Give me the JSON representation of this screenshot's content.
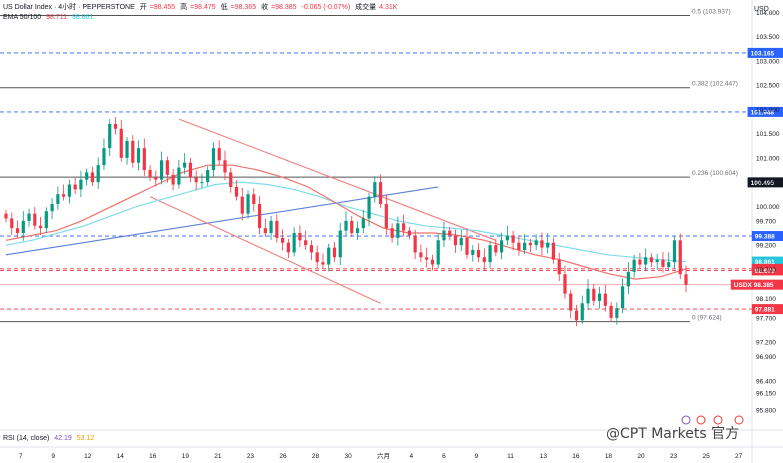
{
  "legend": {
    "symbol": "US Dollar Index · 4小时 · PEPPERSTONE",
    "open_label": "开",
    "open": "=98.455",
    "high_label": "高",
    "high": "=98.475",
    "low_label": "低",
    "low": "=98.365",
    "close_label": "收",
    "close": "=98.385",
    "change": "-0.065 (-0.07%)",
    "volume_label": "成交量",
    "volume": "4.31K",
    "ema_label": "EMA 50/100",
    "ema50": "98.711",
    "ema100": "98.861"
  },
  "rsi_legend": {
    "label": "RSI (14, close)",
    "value_a": "42.19",
    "value_b": "53.12"
  },
  "currency": "USD",
  "watermark": "@CPT Markets 官方",
  "colors": {
    "up": "#089981",
    "down": "#f23645",
    "ema50": "#f0706c",
    "ema100": "#7fdcea",
    "trend_up": "#5b7fd8",
    "channel": "#f08080",
    "hline_dash": "#2962ff",
    "fib": "#555555"
  },
  "chart_data": {
    "type": "candlestick",
    "title": "US Dollar Index · 4小时 · PEPPERSTONE",
    "ylim": [
      95.8,
      104.05
    ],
    "y_ticks": [
      "104.000",
      "103.500",
      "103.000",
      "102.500",
      "102.000",
      "101.500",
      "101.000",
      "100.500",
      "100.000",
      "99.700",
      "99.200",
      "98.700",
      "98.100",
      "97.700",
      "97.200",
      "96.900",
      "96.400",
      "96.150",
      "95.800"
    ],
    "x_ticks": [
      "7",
      "9",
      "12",
      "14",
      "16",
      "19",
      "21",
      "23",
      "26",
      "28",
      "30",
      "六月",
      "4",
      "6",
      "9",
      "11",
      "13",
      "16",
      "18",
      "20",
      "23",
      "25",
      "27"
    ],
    "fib_levels": [
      {
        "label": "0.5 (103.937)",
        "value": 103.937
      },
      {
        "label": "0.382 (102.447)",
        "value": 102.447
      },
      {
        "label": "0.236 (100.604)",
        "value": 100.604
      },
      {
        "label": "0 (97.624)",
        "value": 97.624
      }
    ],
    "price_tags": [
      {
        "label": "103.165",
        "value": 103.165,
        "style": "blue"
      },
      {
        "label": "101.948",
        "value": 101.948,
        "style": "blue"
      },
      {
        "label": "100.495",
        "value": 100.495,
        "style": "dark"
      },
      {
        "label": "99.388",
        "value": 99.388,
        "style": "blue"
      },
      {
        "label": "98.861",
        "value": 98.861,
        "style": "cyan"
      },
      {
        "label": "98.711",
        "value": 98.711,
        "style": "red"
      },
      {
        "label": "98.679",
        "value": 98.679,
        "style": "red"
      },
      {
        "label": "USDX 98.385",
        "value": 98.385,
        "style": "red"
      },
      {
        "label": "97.881",
        "value": 97.881,
        "style": "red"
      }
    ],
    "closes": [
      99.75,
      99.55,
      99.45,
      99.7,
      99.85,
      99.6,
      99.55,
      99.9,
      100.05,
      100.25,
      100.2,
      100.45,
      100.35,
      100.55,
      100.7,
      100.5,
      100.85,
      101.2,
      101.7,
      101.6,
      101.0,
      101.35,
      100.9,
      101.2,
      100.75,
      100.6,
      100.55,
      100.95,
      100.65,
      100.45,
      100.8,
      100.9,
      100.6,
      100.5,
      100.5,
      100.75,
      101.2,
      100.95,
      100.7,
      100.4,
      100.2,
      99.85,
      100.25,
      100.05,
      99.55,
      99.45,
      99.7,
      99.35,
      99.25,
      99.05,
      99.45,
      99.3,
      99.2,
      99.05,
      98.85,
      98.8,
      99.15,
      98.95,
      99.5,
      99.7,
      99.45,
      99.55,
      99.75,
      100.2,
      100.5,
      100.05,
      99.55,
      99.35,
      99.65,
      99.5,
      99.4,
      99.05,
      98.95,
      98.9,
      98.8,
      99.3,
      99.5,
      99.4,
      99.2,
      99.35,
      99.0,
      99.1,
      98.95,
      98.85,
      99.2,
      99.05,
      99.3,
      99.4,
      99.25,
      99.1,
      99.25,
      99.2,
      99.3,
      99.15,
      99.25,
      98.9,
      98.6,
      98.2,
      97.85,
      97.65,
      98.0,
      98.3,
      98.05,
      98.2,
      97.95,
      97.7,
      97.9,
      98.35,
      98.65,
      98.9,
      98.8,
      98.95,
      98.85,
      98.9,
      98.75,
      98.85,
      99.3,
      98.6,
      98.385
    ],
    "ema50": [
      99.3,
      99.4,
      99.5,
      99.7,
      99.95,
      100.2,
      100.45,
      100.7,
      100.85,
      100.85,
      100.75,
      100.6,
      100.4,
      100.1,
      99.8,
      99.55,
      99.45,
      99.45,
      99.4,
      99.3,
      99.15,
      99.0,
      98.9,
      98.75,
      98.6,
      98.5,
      98.55,
      98.711
    ],
    "ema100": [
      99.2,
      99.3,
      99.45,
      99.6,
      99.8,
      100.0,
      100.15,
      100.3,
      100.45,
      100.5,
      100.45,
      100.35,
      100.2,
      100.0,
      99.85,
      99.7,
      99.6,
      99.55,
      99.5,
      99.4,
      99.3,
      99.2,
      99.1,
      99.0,
      98.95,
      98.9,
      98.861
    ],
    "trend_up_line": [
      [
        0,
        99.0
      ],
      [
        75,
        100.4
      ]
    ],
    "channel_upper": [
      [
        30,
        101.8
      ],
      [
        85,
        99.3
      ]
    ],
    "channel_lower": [
      [
        25,
        100.2
      ],
      [
        65,
        98.0
      ]
    ]
  }
}
